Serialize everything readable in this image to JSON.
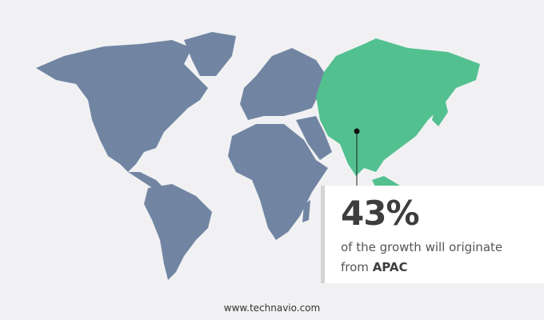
{
  "colors": {
    "background": "#f1f1f3",
    "rest_of_world": "#7185a3",
    "highlight_region": "#52c08f",
    "text": "#3d3d3d"
  },
  "map": {
    "highlighted_region": "APAC",
    "marker": "dot-with-leader-line"
  },
  "callout": {
    "value": "43%",
    "text_line1": "of the growth will originate",
    "text_line2_prefix": "from ",
    "region": "APAC"
  },
  "footer": {
    "website": "www.technavio.com"
  }
}
